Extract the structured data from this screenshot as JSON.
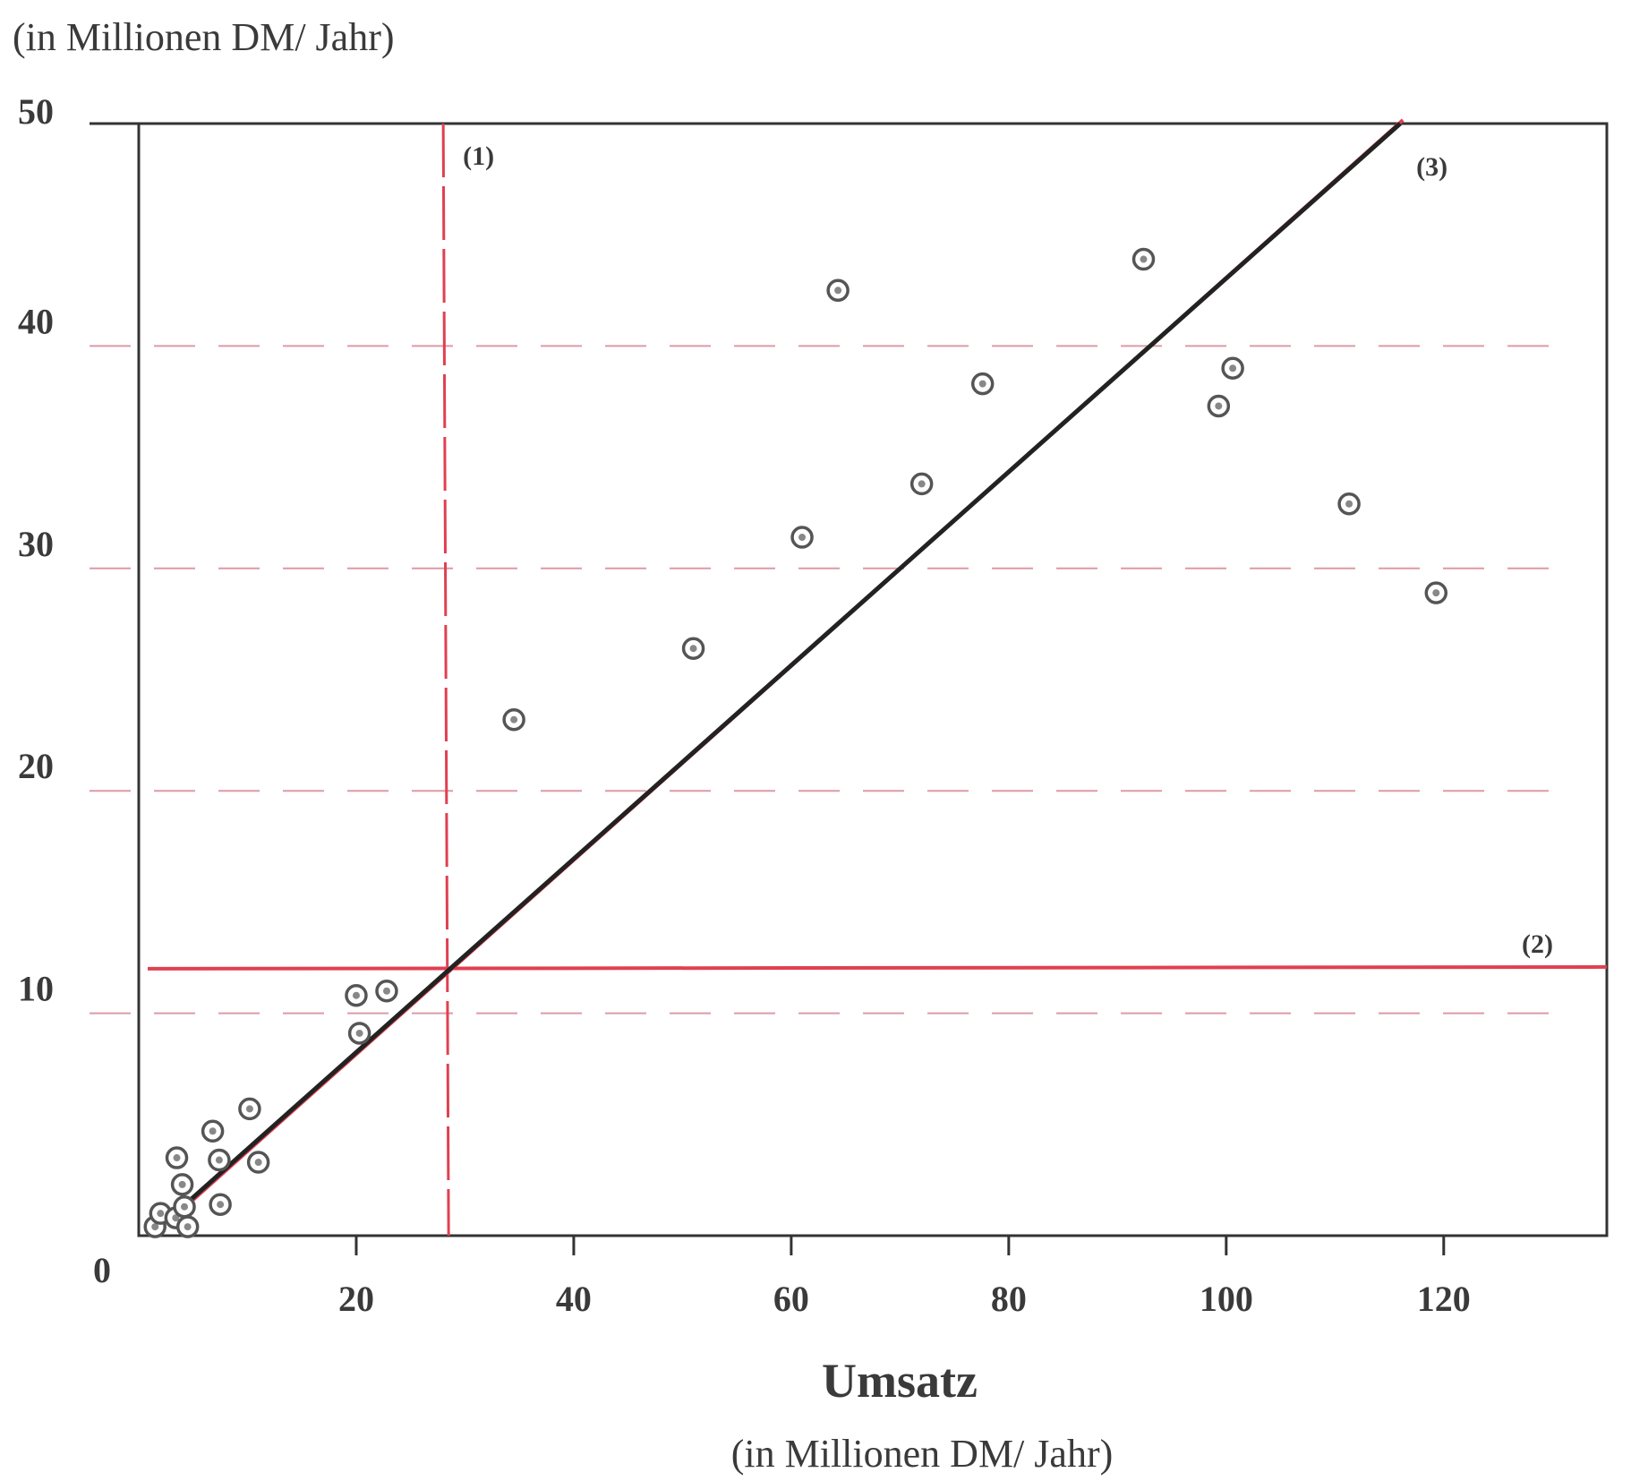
{
  "chart_data": {
    "type": "scatter",
    "y_unit_label": "(in Millionen DM/ Jahr)",
    "x_title": "Umsatz",
    "x_unit_label": "(in Millionen DM/ Jahr)",
    "origin_label": "0",
    "xlim": [
      0,
      135
    ],
    "ylim": [
      0,
      50
    ],
    "x_ticks": [
      {
        "value": 20,
        "label": "20"
      },
      {
        "value": 40,
        "label": "40"
      },
      {
        "value": 60,
        "label": "60"
      },
      {
        "value": 80,
        "label": "80"
      },
      {
        "value": 100,
        "label": "100"
      },
      {
        "value": 120,
        "label": "120"
      }
    ],
    "y_ticks": [
      {
        "value": 10,
        "label": "10"
      },
      {
        "value": 20,
        "label": "20"
      },
      {
        "value": 30,
        "label": "30"
      },
      {
        "value": 40,
        "label": "40"
      },
      {
        "value": 50,
        "label": "50"
      }
    ],
    "grid": "dashed horizontal",
    "points": [
      {
        "x": 1.5,
        "y": 0.4
      },
      {
        "x": 2.0,
        "y": 1.0
      },
      {
        "x": 3.4,
        "y": 0.8
      },
      {
        "x": 4.5,
        "y": 0.4
      },
      {
        "x": 4.2,
        "y": 1.3
      },
      {
        "x": 4.0,
        "y": 2.3
      },
      {
        "x": 3.5,
        "y": 3.5
      },
      {
        "x": 6.8,
        "y": 4.7
      },
      {
        "x": 7.4,
        "y": 3.4
      },
      {
        "x": 7.5,
        "y": 1.4
      },
      {
        "x": 10.2,
        "y": 5.7
      },
      {
        "x": 11.0,
        "y": 3.3
      },
      {
        "x": 20.3,
        "y": 9.1
      },
      {
        "x": 20.0,
        "y": 10.8
      },
      {
        "x": 22.8,
        "y": 11.0
      },
      {
        "x": 34.5,
        "y": 23.2
      },
      {
        "x": 51.0,
        "y": 26.4
      },
      {
        "x": 61.0,
        "y": 31.4
      },
      {
        "x": 64.3,
        "y": 42.5
      },
      {
        "x": 72.0,
        "y": 33.8
      },
      {
        "x": 77.6,
        "y": 38.3
      },
      {
        "x": 92.4,
        "y": 43.9
      },
      {
        "x": 99.3,
        "y": 37.3
      },
      {
        "x": 100.6,
        "y": 39.0
      },
      {
        "x": 111.3,
        "y": 32.9
      },
      {
        "x": 119.3,
        "y": 28.9
      }
    ],
    "reference_lines": [
      {
        "kind": "vertical",
        "x": 28.0,
        "label": "(1)"
      },
      {
        "kind": "horizontal",
        "y": 12.0,
        "label": "(2)"
      },
      {
        "kind": "regression",
        "from": [
          4.5,
          1.5
        ],
        "to": [
          116.0,
          50.0
        ],
        "label": "(3)"
      }
    ],
    "colors": {
      "marker": "#555555",
      "reference": "#e04050",
      "regression": "#222222",
      "axis": "#333333",
      "grid": "#d07080"
    }
  }
}
